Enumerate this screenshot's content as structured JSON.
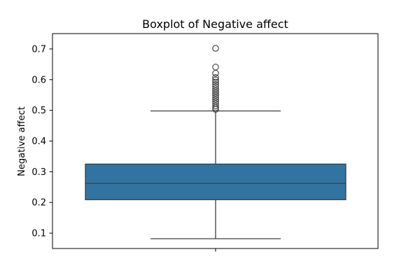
{
  "chart_data": {
    "type": "box",
    "title": "Boxplot of Negative affect",
    "xlabel": "",
    "ylabel": "Negative affect",
    "ylim": [
      0.05,
      0.75
    ],
    "yticks": [
      0.1,
      0.2,
      0.3,
      0.4,
      0.5,
      0.6,
      0.7
    ],
    "ytick_labels": [
      "0.1",
      "0.2",
      "0.3",
      "0.4",
      "0.5",
      "0.6",
      "0.7"
    ],
    "grid": false,
    "box": {
      "whisker_low": 0.082,
      "q1": 0.209,
      "median": 0.262,
      "q3": 0.325,
      "whisker_high": 0.498
    },
    "outliers": [
      0.702,
      0.641,
      0.621,
      0.607,
      0.599,
      0.592,
      0.584,
      0.577,
      0.57,
      0.563,
      0.556,
      0.549,
      0.542,
      0.535,
      0.528,
      0.521,
      0.514,
      0.508,
      0.503
    ],
    "colors": {
      "box_fill": "#3274a1",
      "line": "#3d3d3d",
      "axes": "#000000",
      "background": "#ffffff"
    }
  }
}
